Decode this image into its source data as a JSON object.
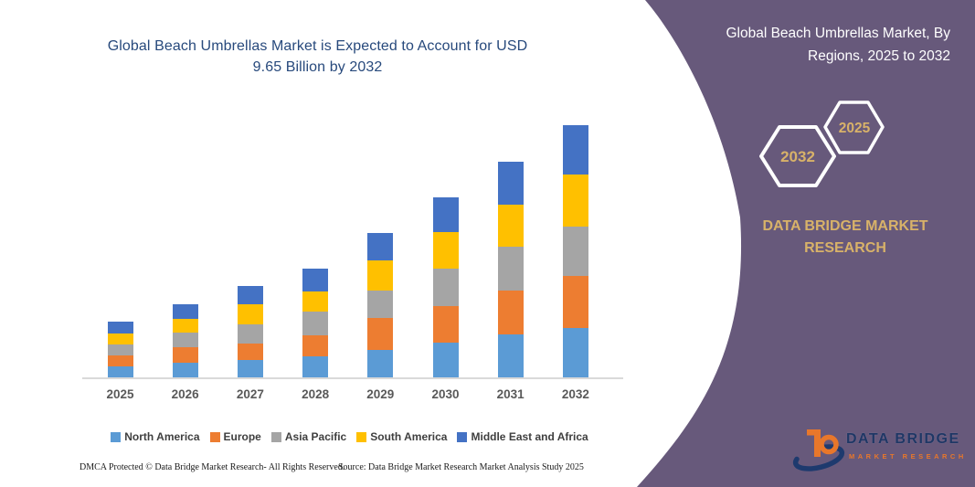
{
  "chart": {
    "title_lines": [
      "Global Beach Umbrellas Market is Expected to Account for USD",
      "9.65 Billion by 2032"
    ]
  },
  "chart_data": {
    "type": "bar",
    "stacked": true,
    "title": "Global Beach Umbrellas Market is Expected to Account for USD 9.65 Billion by 2032",
    "unit": "USD Billion",
    "categories": [
      "2025",
      "2026",
      "2027",
      "2028",
      "2029",
      "2030",
      "2031",
      "2032"
    ],
    "series": [
      {
        "name": "North America",
        "color": "#5B9BD5",
        "values": [
          0.42,
          0.56,
          0.66,
          0.8,
          1.05,
          1.33,
          1.64,
          1.89
        ]
      },
      {
        "name": "Europe",
        "color": "#ED7D31",
        "values": [
          0.42,
          0.59,
          0.63,
          0.8,
          1.22,
          1.4,
          1.68,
          1.99
        ]
      },
      {
        "name": "Asia Pacific",
        "color": "#A5A5A5",
        "values": [
          0.42,
          0.56,
          0.73,
          0.91,
          1.05,
          1.43,
          1.68,
          1.89
        ]
      },
      {
        "name": "South America",
        "color": "#FFC000",
        "values": [
          0.42,
          0.52,
          0.77,
          0.77,
          1.15,
          1.4,
          1.61,
          1.99
        ]
      },
      {
        "name": "Middle East and Africa",
        "color": "#4472C4",
        "values": [
          0.45,
          0.56,
          0.7,
          0.87,
          1.05,
          1.33,
          1.64,
          1.89
        ]
      }
    ],
    "totals": [
      2.13,
      2.79,
      3.49,
      4.15,
      5.52,
      6.89,
      8.25,
      9.65
    ],
    "ylim": [
      0,
      9.65
    ],
    "grid": false,
    "legend_position": "bottom",
    "xlabel": "",
    "ylabel": ""
  },
  "panel": {
    "title_lines": [
      "Global Beach Umbrellas Market, By",
      "Regions, 2025 to 2032"
    ],
    "hexagons": [
      {
        "label": "2032"
      },
      {
        "label": "2025"
      }
    ],
    "brand_lines": [
      "DATA BRIDGE MARKET",
      "RESEARCH"
    ],
    "logo": {
      "title": "DATA BRIDGE",
      "subtitle": "MARKET RESEARCH"
    },
    "colors": {
      "background": "#67597B",
      "gold": "#D8B269",
      "white": "#FFFFFF",
      "logo_orange": "#E8772B",
      "logo_navy": "#1E3A6E"
    }
  },
  "footer": {
    "left": "DMCA Protected © Data Bridge Market Research-  All Rights Reserved.",
    "right": "Source: Data Bridge Market Research  Market Analysis Study 2025"
  }
}
